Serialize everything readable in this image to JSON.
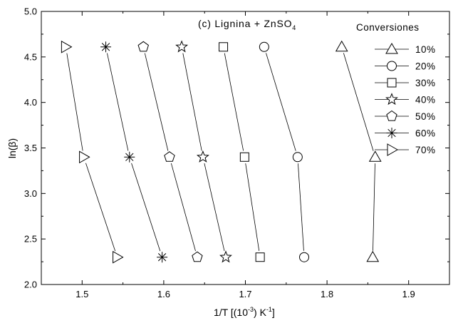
{
  "chart_data": {
    "type": "line",
    "title_parts": {
      "main": "(c) Lignina + ZnSO",
      "sub": "4"
    },
    "xlabel_parts": {
      "a": "1/T  [(10",
      "b": "-3",
      "c": ") K",
      "d": "-1",
      "e": "]"
    },
    "ylabel": "ln(β)",
    "xlim": [
      1.45,
      1.95
    ],
    "ylim": [
      2.0,
      5.0
    ],
    "x_ticks": [
      1.5,
      1.6,
      1.7,
      1.8,
      1.9
    ],
    "x_tick_labels": [
      "1.5",
      "1.6",
      "1.7",
      "1.8",
      "1.9"
    ],
    "y_ticks": [
      2.0,
      2.5,
      3.0,
      3.5,
      4.0,
      4.5,
      5.0
    ],
    "y_tick_labels": [
      "2.0",
      "2.5",
      "3.0",
      "3.5",
      "4.0",
      "4.5",
      "5.0"
    ],
    "legend_title": "Conversiones",
    "legend_position": "right",
    "grid": false,
    "series": [
      {
        "name": "10%",
        "marker": "triangle-up",
        "points": [
          {
            "x": 1.856,
            "y": 2.3
          },
          {
            "x": 1.859,
            "y": 3.4
          },
          {
            "x": 1.818,
            "y": 4.61
          }
        ]
      },
      {
        "name": "20%",
        "marker": "circle",
        "points": [
          {
            "x": 1.772,
            "y": 2.3
          },
          {
            "x": 1.764,
            "y": 3.4
          },
          {
            "x": 1.723,
            "y": 4.61
          }
        ]
      },
      {
        "name": "30%",
        "marker": "square",
        "points": [
          {
            "x": 1.718,
            "y": 2.3
          },
          {
            "x": 1.699,
            "y": 3.4
          },
          {
            "x": 1.673,
            "y": 4.61
          }
        ]
      },
      {
        "name": "40%",
        "marker": "star",
        "points": [
          {
            "x": 1.676,
            "y": 2.3
          },
          {
            "x": 1.648,
            "y": 3.4
          },
          {
            "x": 1.622,
            "y": 4.61
          }
        ]
      },
      {
        "name": "50%",
        "marker": "pentagon",
        "points": [
          {
            "x": 1.641,
            "y": 2.3
          },
          {
            "x": 1.607,
            "y": 3.4
          },
          {
            "x": 1.575,
            "y": 4.61
          }
        ]
      },
      {
        "name": "60%",
        "marker": "asterisk",
        "points": [
          {
            "x": 1.598,
            "y": 2.3
          },
          {
            "x": 1.558,
            "y": 3.4
          },
          {
            "x": 1.529,
            "y": 4.61
          }
        ]
      },
      {
        "name": "70%",
        "marker": "triangle-right",
        "points": [
          {
            "x": 1.543,
            "y": 2.3
          },
          {
            "x": 1.502,
            "y": 3.4
          },
          {
            "x": 1.48,
            "y": 4.61
          }
        ]
      }
    ]
  }
}
